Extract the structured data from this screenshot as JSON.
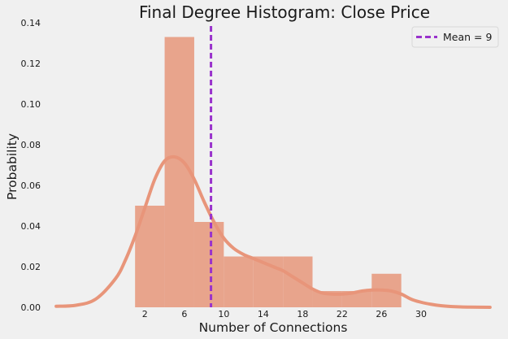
{
  "chart_data": {
    "type": "bar",
    "title": "Final Degree Histogram: Close Price",
    "xlabel": "Number of Connections",
    "ylabel": "Probability",
    "xlim": [
      -8,
      38
    ],
    "ylim": [
      0,
      0.14
    ],
    "x_ticks": [
      2,
      6,
      10,
      14,
      18,
      22,
      26,
      30
    ],
    "x_tick_labels": [
      "2",
      "6",
      "10",
      "14",
      "18",
      "22",
      "26",
      "30"
    ],
    "y_ticks": [
      0.0,
      0.02,
      0.04,
      0.06,
      0.08,
      0.1,
      0.12,
      0.14
    ],
    "y_tick_labels": [
      "0.00",
      "0.02",
      "0.04",
      "0.06",
      "0.08",
      "0.10",
      "0.12",
      "0.14"
    ],
    "grid": false,
    "legend_position": "top-right",
    "bins": [
      {
        "start": 1,
        "end": 4,
        "value": 0.05
      },
      {
        "start": 4,
        "end": 7,
        "value": 0.133
      },
      {
        "start": 7,
        "end": 10,
        "value": 0.042
      },
      {
        "start": 10,
        "end": 13,
        "value": 0.025
      },
      {
        "start": 13,
        "end": 16,
        "value": 0.025
      },
      {
        "start": 16,
        "end": 19,
        "value": 0.025
      },
      {
        "start": 19,
        "end": 22,
        "value": 0.008
      },
      {
        "start": 22,
        "end": 25,
        "value": 0.008
      },
      {
        "start": 25,
        "end": 28,
        "value": 0.0165
      }
    ],
    "kde": {
      "x": [
        -7,
        -5,
        -3,
        -1,
        0,
        1,
        2,
        3,
        4,
        5,
        6,
        7,
        8,
        9,
        10,
        11,
        12,
        13,
        14,
        15,
        16,
        17,
        18,
        19,
        20,
        21,
        22,
        23,
        24,
        25,
        26,
        27,
        28,
        29,
        30,
        31,
        32,
        33,
        34,
        35,
        37
      ],
      "y": [
        0.0005,
        0.001,
        0.004,
        0.014,
        0.023,
        0.035,
        0.049,
        0.063,
        0.072,
        0.074,
        0.071,
        0.063,
        0.052,
        0.042,
        0.034,
        0.029,
        0.026,
        0.024,
        0.022,
        0.02,
        0.018,
        0.015,
        0.012,
        0.009,
        0.007,
        0.0065,
        0.0065,
        0.007,
        0.008,
        0.0085,
        0.0085,
        0.008,
        0.0065,
        0.004,
        0.0025,
        0.0015,
        0.0008,
        0.0004,
        0.0002,
        0.0001,
        0.0
      ]
    },
    "mean_line": {
      "x": 8.7,
      "label": "Mean =  9"
    },
    "colors": {
      "bar": "#e8a48c",
      "kde": "#e8957a",
      "mean": "#9932cc",
      "background": "#f0f0f0",
      "legend_border": "#d8d8d8",
      "legend_background": "#f0f0f0",
      "text": "#1a1a1a"
    }
  }
}
